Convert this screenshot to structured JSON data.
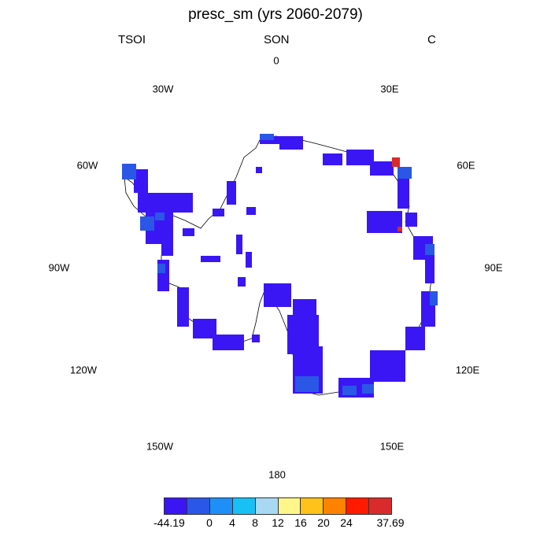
{
  "title": "presc_sm (yrs 2060-2079)",
  "left_label": "TSOI",
  "center_label": "SON",
  "right_label": "C",
  "lon_labels": {
    "l0": "0",
    "l30e": "30E",
    "l60e": "60E",
    "l90e": "90E",
    "l120e": "120E",
    "l150e": "150E",
    "l180": "180",
    "l150w": "150W",
    "l120w": "120W",
    "l90w": "90W",
    "l60w": "60W",
    "l30w": "30W"
  },
  "colorbar": {
    "colors": [
      "#3a16f5",
      "#2a57e6",
      "#1e8ff7",
      "#17c0f5",
      "#a8d8f2",
      "#fff68a",
      "#ffc21a",
      "#ff8300",
      "#ff1a00",
      "#d92b2b"
    ],
    "labels": [
      "-44.19",
      "0",
      "4",
      "8",
      "12",
      "16",
      "20",
      "24",
      "37.69"
    ]
  }
}
